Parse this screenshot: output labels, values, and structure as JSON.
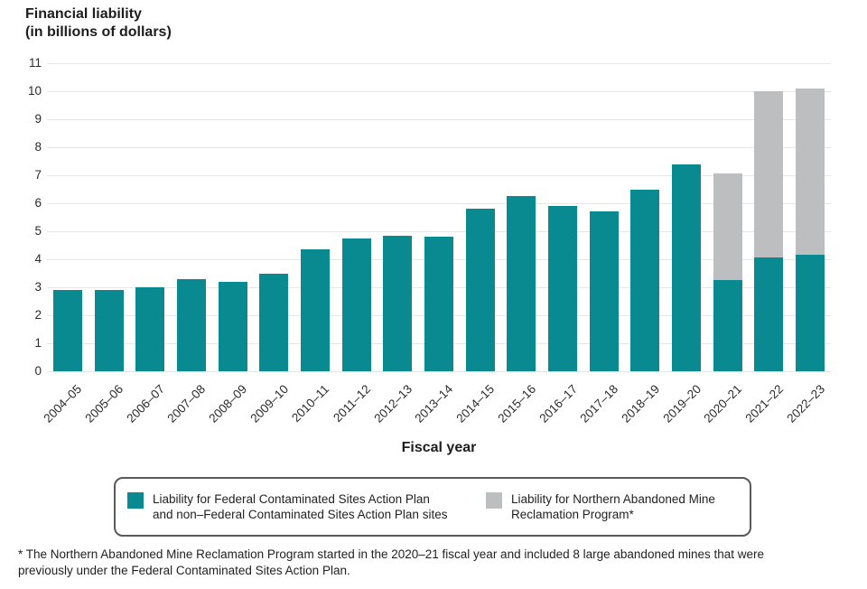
{
  "header": {
    "title_line1": "Financial liability",
    "title_line2": "(in billions of dollars)"
  },
  "xaxis_title": "Fiscal year",
  "legend": {
    "items": [
      {
        "line1": "Liability for Federal Contaminated Sites Action Plan",
        "line2": "and non–Federal Contaminated Sites Action Plan sites",
        "color": "#098a90"
      },
      {
        "line1": "Liability for Northern Abandoned Mine",
        "line2": "Reclamation Program*",
        "color": "#bcbec0"
      }
    ]
  },
  "footnote": {
    "line1": "* The Northern Abandoned Mine Reclamation Program started in the 2020–21 fiscal year and included 8 large abandoned mines that were",
    "line2": "previously under the Federal Contaminated Sites Action Plan."
  },
  "chart_data": {
    "type": "bar",
    "stacked": true,
    "title": "Financial liability (in billions of dollars)",
    "xlabel": "Fiscal year",
    "ylabel": "Financial liability (in billions of dollars)",
    "ylim": [
      0,
      11
    ],
    "yticks": [
      0,
      1,
      2,
      3,
      4,
      5,
      6,
      7,
      8,
      9,
      10,
      11
    ],
    "grid": true,
    "legend_position": "bottom",
    "categories": [
      "2004–05",
      "2005–06",
      "2006–07",
      "2007–08",
      "2008–09",
      "2009–10",
      "2010–11",
      "2011–12",
      "2012–13",
      "2013–14",
      "2014–15",
      "2015–16",
      "2016–17",
      "2017–18",
      "2018–19",
      "2019–20",
      "2020–21",
      "2021–22",
      "2022–23"
    ],
    "series": [
      {
        "name": "Liability for Federal Contaminated Sites Action Plan and non–Federal Contaminated Sites Action Plan sites",
        "color": "#098a90",
        "values": [
          2.9,
          2.9,
          3.0,
          3.3,
          3.2,
          3.5,
          4.35,
          4.75,
          4.85,
          4.8,
          5.8,
          6.25,
          5.9,
          5.7,
          6.5,
          7.4,
          3.25,
          4.05,
          4.15
        ]
      },
      {
        "name": "Liability for Northern Abandoned Mine Reclamation Program*",
        "color": "#bcbec0",
        "values": [
          0,
          0,
          0,
          0,
          0,
          0,
          0,
          0,
          0,
          0,
          0,
          0,
          0,
          0,
          0,
          0,
          3.8,
          5.95,
          5.95
        ]
      }
    ],
    "stacked_totals": [
      2.9,
      2.9,
      3.0,
      3.3,
      3.2,
      3.5,
      4.35,
      4.75,
      4.85,
      4.8,
      5.8,
      6.25,
      5.9,
      5.7,
      6.5,
      7.4,
      7.05,
      10.0,
      10.1
    ]
  }
}
